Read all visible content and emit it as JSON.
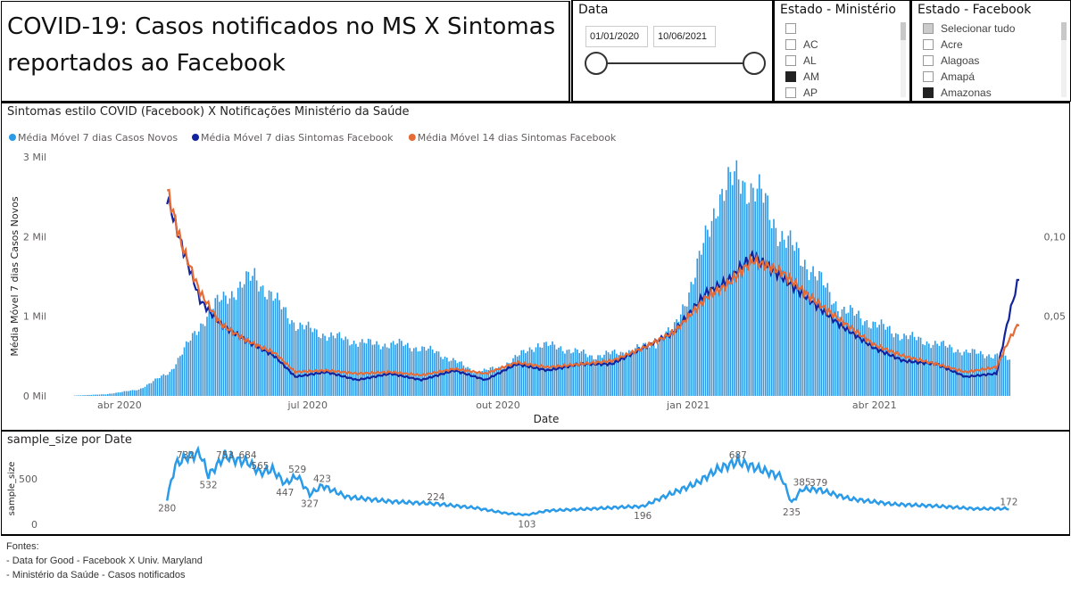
{
  "header": {
    "title": "COVID-19: Casos notificados no MS X Sintomas reportados ao Facebook"
  },
  "date_filter": {
    "label": "Data",
    "start": "01/01/2020",
    "end": "10/06/2021"
  },
  "state_ministry": {
    "label": "Estado - Ministério",
    "items": [
      {
        "label": "",
        "checked": false
      },
      {
        "label": "AC",
        "checked": false
      },
      {
        "label": "AL",
        "checked": false
      },
      {
        "label": "AM",
        "checked": true
      },
      {
        "label": "AP",
        "checked": false
      }
    ]
  },
  "state_facebook": {
    "label": "Estado - Facebook",
    "items": [
      {
        "label": "Selecionar tudo",
        "checked": "partial"
      },
      {
        "label": "Acre",
        "checked": false
      },
      {
        "label": "Alagoas",
        "checked": false
      },
      {
        "label": "Amapá",
        "checked": false
      },
      {
        "label": "Amazonas",
        "checked": true
      }
    ]
  },
  "colors": {
    "cases_bar": "#2b9be8",
    "symptoms_7": "#12239e",
    "symptoms_14": "#e66c37",
    "sample_line": "#2b9be8"
  },
  "main_chart": {
    "title": "Sintomas estilo COVID (Facebook) X Notificações Ministério da Saúde",
    "legend": [
      {
        "label": "Média Móvel 7 dias Casos Novos",
        "color": "#2b9be8"
      },
      {
        "label": "Média Móvel 7 dias Sintomas Facebook",
        "color": "#12239e"
      },
      {
        "label": "Média Móvel 14 dias Sintomas Facebook",
        "color": "#e66c37"
      }
    ],
    "y_label": "Média Móvel 7 dias Casos Novos",
    "x_label": "Date",
    "y_ticks": [
      "0 Mil",
      "1 Mil",
      "2 Mil",
      "3 Mil"
    ],
    "y2_ticks": [
      "0,05",
      "0,10"
    ],
    "x_ticks": [
      "abr 2020",
      "jul 2020",
      "out 2020",
      "jan 2021",
      "abr 2021"
    ]
  },
  "sample_chart": {
    "title": "sample_size por Date",
    "y_label": "sample_size",
    "y_ticks": [
      "0",
      "500"
    ],
    "labels": [
      "280",
      "732",
      "532",
      "753",
      "684",
      "565",
      "447",
      "529",
      "327",
      "423",
      "224",
      "103",
      "196",
      "687",
      "235",
      "385",
      "379",
      "172"
    ]
  },
  "chart_data": [
    {
      "type": "bar",
      "title": "Sintomas estilo COVID (Facebook) X Notificações Ministério da Saúde",
      "xlabel": "Date",
      "ylabel": "Média Móvel 7 dias Casos Novos",
      "ylim": [
        0,
        3000
      ],
      "y2lim": [
        0,
        0.15
      ],
      "x_range": [
        "2020-03-01",
        "2021-06-10"
      ],
      "series": [
        {
          "name": "Média Móvel 7 dias Casos Novos",
          "axis": "left",
          "points": [
            [
              "2020-03-10",
              5
            ],
            [
              "2020-03-25",
              20
            ],
            [
              "2020-04-10",
              80
            ],
            [
              "2020-04-25",
              300
            ],
            [
              "2020-05-05",
              700
            ],
            [
              "2020-05-15",
              1100
            ],
            [
              "2020-05-25",
              1300
            ],
            [
              "2020-06-05",
              1500
            ],
            [
              "2020-06-15",
              1200
            ],
            [
              "2020-06-25",
              900
            ],
            [
              "2020-07-05",
              800
            ],
            [
              "2020-07-20",
              700
            ],
            [
              "2020-08-01",
              650
            ],
            [
              "2020-08-15",
              650
            ],
            [
              "2020-09-01",
              550
            ],
            [
              "2020-09-20",
              300
            ],
            [
              "2020-10-01",
              350
            ],
            [
              "2020-10-20",
              650
            ],
            [
              "2020-11-01",
              600
            ],
            [
              "2020-11-15",
              500
            ],
            [
              "2020-12-01",
              550
            ],
            [
              "2020-12-15",
              650
            ],
            [
              "2020-12-25",
              850
            ],
            [
              "2021-01-05",
              1600
            ],
            [
              "2021-01-15",
              2500
            ],
            [
              "2021-01-25",
              2750
            ],
            [
              "2021-02-05",
              2500
            ],
            [
              "2021-02-15",
              2000
            ],
            [
              "2021-03-01",
              1600
            ],
            [
              "2021-03-15",
              1100
            ],
            [
              "2021-04-01",
              900
            ],
            [
              "2021-04-15",
              750
            ],
            [
              "2021-05-01",
              650
            ],
            [
              "2021-05-15",
              550
            ],
            [
              "2021-06-01",
              500
            ],
            [
              "2021-06-05",
              450
            ]
          ]
        },
        {
          "name": "Média Móvel 7 dias Sintomas Facebook",
          "axis": "right",
          "points": [
            [
              "2020-04-24",
              0.125
            ],
            [
              "2020-05-01",
              0.095
            ],
            [
              "2020-05-10",
              0.06
            ],
            [
              "2020-05-20",
              0.045
            ],
            [
              "2020-06-01",
              0.035
            ],
            [
              "2020-06-15",
              0.025
            ],
            [
              "2020-06-25",
              0.012
            ],
            [
              "2020-07-10",
              0.015
            ],
            [
              "2020-07-25",
              0.01
            ],
            [
              "2020-08-10",
              0.014
            ],
            [
              "2020-08-25",
              0.01
            ],
            [
              "2020-09-10",
              0.016
            ],
            [
              "2020-09-25",
              0.01
            ],
            [
              "2020-10-10",
              0.02
            ],
            [
              "2020-10-25",
              0.016
            ],
            [
              "2020-11-10",
              0.02
            ],
            [
              "2020-11-25",
              0.02
            ],
            [
              "2020-12-10",
              0.03
            ],
            [
              "2020-12-25",
              0.04
            ],
            [
              "2021-01-10",
              0.065
            ],
            [
              "2021-01-20",
              0.072
            ],
            [
              "2021-02-01",
              0.088
            ],
            [
              "2021-02-15",
              0.075
            ],
            [
              "2021-03-01",
              0.06
            ],
            [
              "2021-03-15",
              0.045
            ],
            [
              "2021-04-01",
              0.03
            ],
            [
              "2021-04-15",
              0.022
            ],
            [
              "2021-05-01",
              0.02
            ],
            [
              "2021-05-15",
              0.012
            ],
            [
              "2021-05-30",
              0.014
            ],
            [
              "2021-06-05",
              0.05
            ],
            [
              "2021-06-10",
              0.075
            ]
          ]
        },
        {
          "name": "Média Móvel 14 dias Sintomas Facebook",
          "axis": "right",
          "points": [
            [
              "2020-04-24",
              0.13
            ],
            [
              "2020-05-01",
              0.095
            ],
            [
              "2020-05-10",
              0.065
            ],
            [
              "2020-05-20",
              0.045
            ],
            [
              "2020-06-01",
              0.035
            ],
            [
              "2020-06-15",
              0.027
            ],
            [
              "2020-06-25",
              0.015
            ],
            [
              "2020-07-10",
              0.016
            ],
            [
              "2020-07-25",
              0.014
            ],
            [
              "2020-08-10",
              0.015
            ],
            [
              "2020-08-25",
              0.013
            ],
            [
              "2020-09-10",
              0.017
            ],
            [
              "2020-09-25",
              0.014
            ],
            [
              "2020-10-10",
              0.021
            ],
            [
              "2020-10-25",
              0.018
            ],
            [
              "2020-11-10",
              0.02
            ],
            [
              "2020-11-25",
              0.022
            ],
            [
              "2020-12-10",
              0.03
            ],
            [
              "2020-12-25",
              0.04
            ],
            [
              "2021-01-10",
              0.062
            ],
            [
              "2021-01-20",
              0.07
            ],
            [
              "2021-02-01",
              0.085
            ],
            [
              "2021-02-15",
              0.078
            ],
            [
              "2021-03-01",
              0.062
            ],
            [
              "2021-03-15",
              0.048
            ],
            [
              "2021-04-01",
              0.032
            ],
            [
              "2021-04-15",
              0.025
            ],
            [
              "2021-05-01",
              0.02
            ],
            [
              "2021-05-15",
              0.015
            ],
            [
              "2021-05-30",
              0.018
            ],
            [
              "2021-06-05",
              0.035
            ],
            [
              "2021-06-10",
              0.046
            ]
          ]
        }
      ]
    },
    {
      "type": "line",
      "title": "sample_size por Date",
      "ylabel": "sample_size",
      "ylim": [
        0,
        800
      ],
      "x_range": [
        "2020-03-01",
        "2021-06-10"
      ],
      "series": [
        {
          "name": "sample_size",
          "points": [
            [
              "2020-04-24",
              280
            ],
            [
              "2020-04-28",
              650
            ],
            [
              "2020-05-03",
              732
            ],
            [
              "2020-05-10",
              780
            ],
            [
              "2020-05-14",
              532
            ],
            [
              "2020-05-22",
              753
            ],
            [
              "2020-05-28",
              700
            ],
            [
              "2020-06-02",
              684
            ],
            [
              "2020-06-08",
              565
            ],
            [
              "2020-06-14",
              600
            ],
            [
              "2020-06-20",
              447
            ],
            [
              "2020-06-26",
              529
            ],
            [
              "2020-07-02",
              327
            ],
            [
              "2020-07-08",
              423
            ],
            [
              "2020-07-20",
              300
            ],
            [
              "2020-08-10",
              250
            ],
            [
              "2020-09-01",
              224
            ],
            [
              "2020-09-20",
              180
            ],
            [
              "2020-10-05",
              120
            ],
            [
              "2020-10-15",
              103
            ],
            [
              "2020-10-25",
              150
            ],
            [
              "2020-11-15",
              170
            ],
            [
              "2020-12-01",
              190
            ],
            [
              "2020-12-10",
              196
            ],
            [
              "2020-12-20",
              300
            ],
            [
              "2021-01-05",
              450
            ],
            [
              "2021-01-15",
              600
            ],
            [
              "2021-01-25",
              687
            ],
            [
              "2021-02-05",
              600
            ],
            [
              "2021-02-15",
              520
            ],
            [
              "2021-02-20",
              235
            ],
            [
              "2021-02-25",
              385
            ],
            [
              "2021-03-05",
              379
            ],
            [
              "2021-03-20",
              280
            ],
            [
              "2021-04-10",
              220
            ],
            [
              "2021-05-01",
              200
            ],
            [
              "2021-05-20",
              170
            ],
            [
              "2021-06-05",
              172
            ]
          ]
        }
      ],
      "data_labels": [
        280,
        732,
        532,
        753,
        684,
        565,
        447,
        529,
        327,
        423,
        224,
        103,
        196,
        687,
        235,
        385,
        379,
        172
      ]
    }
  ],
  "sources": {
    "heading": "Fontes:",
    "lines": [
      "- Data for Good - Facebook X Univ. Maryland",
      "- Ministério da Saúde - Casos notificados"
    ]
  }
}
